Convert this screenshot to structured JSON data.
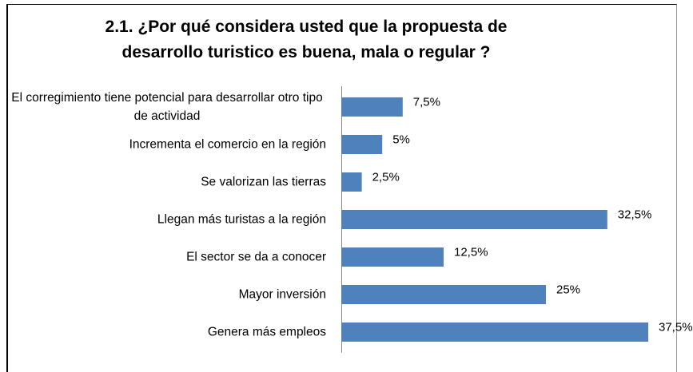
{
  "chart_data": {
    "type": "barh",
    "title": "2.1. ¿Por qué considera usted que la propuesta de desarrollo turistico es buena, mala o regular ?",
    "categories": [
      "El corregimiento tiene potencial para desarrollar otro tipo de actividad",
      "Incrementa el comercio en la región",
      "Se valorizan las tierras",
      "Llegan más turistas a la región",
      "El sector se da a conocer",
      "Mayor inversión",
      "Genera más empleos"
    ],
    "values": [
      7.5,
      5,
      2.5,
      32.5,
      12.5,
      25,
      37.5
    ],
    "value_labels": [
      "7,5%",
      "5%",
      "2,5%",
      "32,5%",
      "12,5%",
      "25%",
      "37,5%"
    ],
    "color": "#4f81bd"
  }
}
